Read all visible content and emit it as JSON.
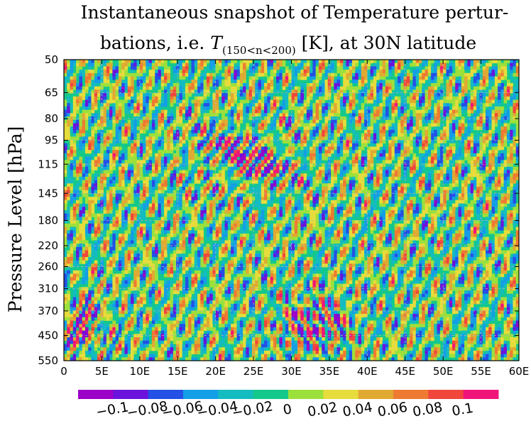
{
  "chart_data": {
    "type": "heatmap",
    "title_line1": "Instantaneous snapshot of Temperature pertur-",
    "title_line2_prefix": "bations, i.e. ",
    "title_line2_symbol": "T",
    "title_line2_subscript": "(150<n<200)",
    "title_line2_suffix": " [K], at 30N latitude",
    "ylabel": "Pressure Level [hPa]",
    "xlabel": "",
    "x_ticks": [
      "0",
      "5E",
      "10E",
      "15E",
      "20E",
      "25E",
      "30E",
      "35E",
      "40E",
      "45E",
      "50E",
      "55E",
      "60E"
    ],
    "x_values": [
      0,
      5,
      10,
      15,
      20,
      25,
      30,
      35,
      40,
      45,
      50,
      55,
      60
    ],
    "xlim": [
      0,
      60
    ],
    "y_ticks": [
      "50",
      "65",
      "80",
      "95",
      "115",
      "145",
      "180",
      "220",
      "260",
      "310",
      "370",
      "450",
      "550"
    ],
    "y_values": [
      50,
      65,
      80,
      95,
      115,
      145,
      180,
      220,
      260,
      310,
      370,
      450,
      550
    ],
    "ylim": [
      50,
      550
    ],
    "y_scale": "log",
    "grid": true,
    "colorbar": {
      "orientation": "horizontal",
      "levels": [
        -0.12,
        -0.1,
        -0.08,
        -0.06,
        -0.04,
        -0.02,
        0,
        0.02,
        0.04,
        0.06,
        0.08,
        0.1,
        0.12
      ],
      "colors": [
        "#9b00c8",
        "#6a14dc",
        "#2450e6",
        "#149ee6",
        "#14bcc0",
        "#14c88c",
        "#9ce03c",
        "#e6dc3c",
        "#e0aa32",
        "#ee7a32",
        "#f0463c",
        "#f0147a"
      ],
      "tick_labels": [
        "−0.1",
        "−0.08",
        "−0.06",
        "−0.04",
        "−0.02",
        "0",
        "0.02",
        "0.04",
        "0.06",
        "0.08",
        "0.1"
      ],
      "tick_values": [
        -0.1,
        -0.08,
        -0.06,
        -0.04,
        -0.02,
        0,
        0.02,
        0.04,
        0.06,
        0.08,
        0.1
      ]
    }
  }
}
